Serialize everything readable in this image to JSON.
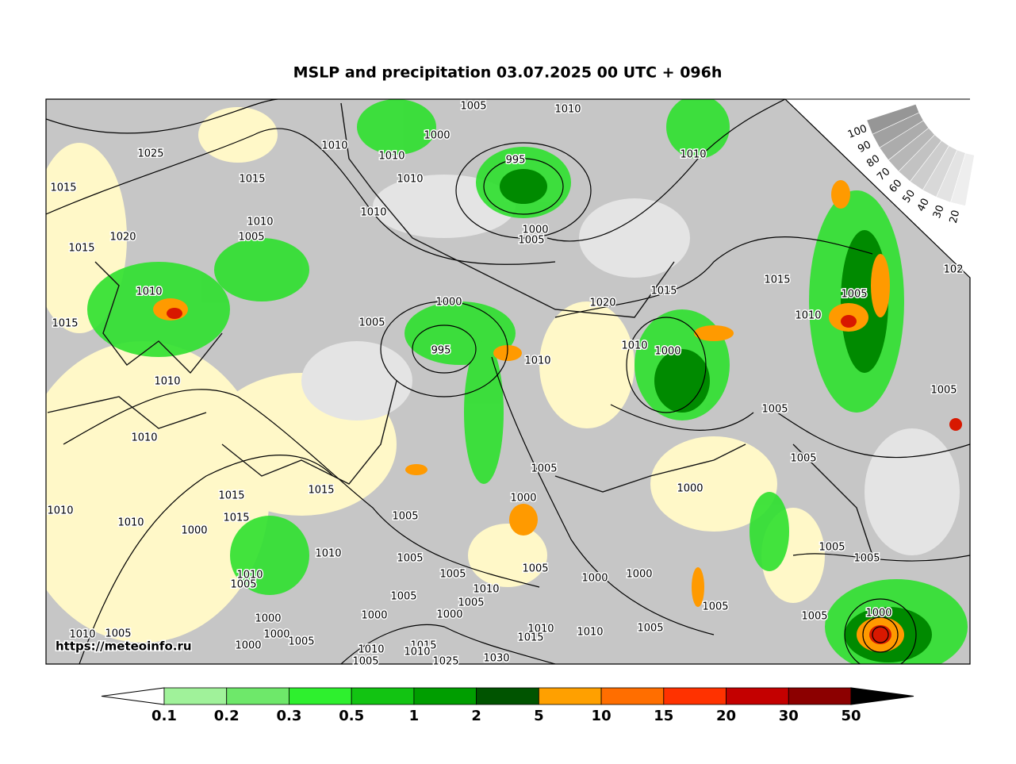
{
  "title": "MSLP and precipitation 03.07.2025 00 UTC + 096h",
  "watermark": "https://meteoinfo.ru",
  "isobar_labels": [
    1005,
    1010,
    1000,
    1025,
    1010,
    1010,
    995,
    1010,
    1010,
    1015,
    1015,
    1010,
    1010,
    1005,
    1020,
    1015,
    1000,
    1005,
    1015,
    1015,
    1005,
    1010,
    1000,
    1020,
    1015,
    1005,
    1010,
    995,
    1010,
    1000,
    1010,
    1010,
    1005,
    1005,
    1010,
    1005,
    1005,
    1015,
    1015,
    1000,
    1000,
    1010,
    1005,
    1015,
    1010,
    1000,
    1010,
    1005,
    1005,
    1005,
    1005,
    1010,
    1005,
    1000,
    1000,
    1005,
    1010,
    1005,
    1005,
    1005,
    1000,
    1005,
    1000,
    1000,
    1000,
    1010,
    1010,
    1005,
    1000,
    1010,
    1005,
    1005,
    1015,
    1000,
    1015,
    1010,
    1010,
    1030,
    1025,
    1005,
    102
  ],
  "colorbar": {
    "labels": [
      0.1,
      0.2,
      0.3,
      0.5,
      1,
      2,
      5,
      10,
      15,
      20,
      30,
      50
    ],
    "colors": [
      "#a0f29a",
      "#6ee86a",
      "#2ef02e",
      "#12c412",
      "#009e00",
      "#005400",
      "#ffa000",
      "#ff6e00",
      "#ff3200",
      "#c40000",
      "#8c0000"
    ],
    "low_color": "#ffffff",
    "high_color": "#000000"
  },
  "cloud_legend": {
    "labels": [
      100,
      90,
      80,
      70,
      60,
      50,
      40,
      30,
      20
    ]
  }
}
